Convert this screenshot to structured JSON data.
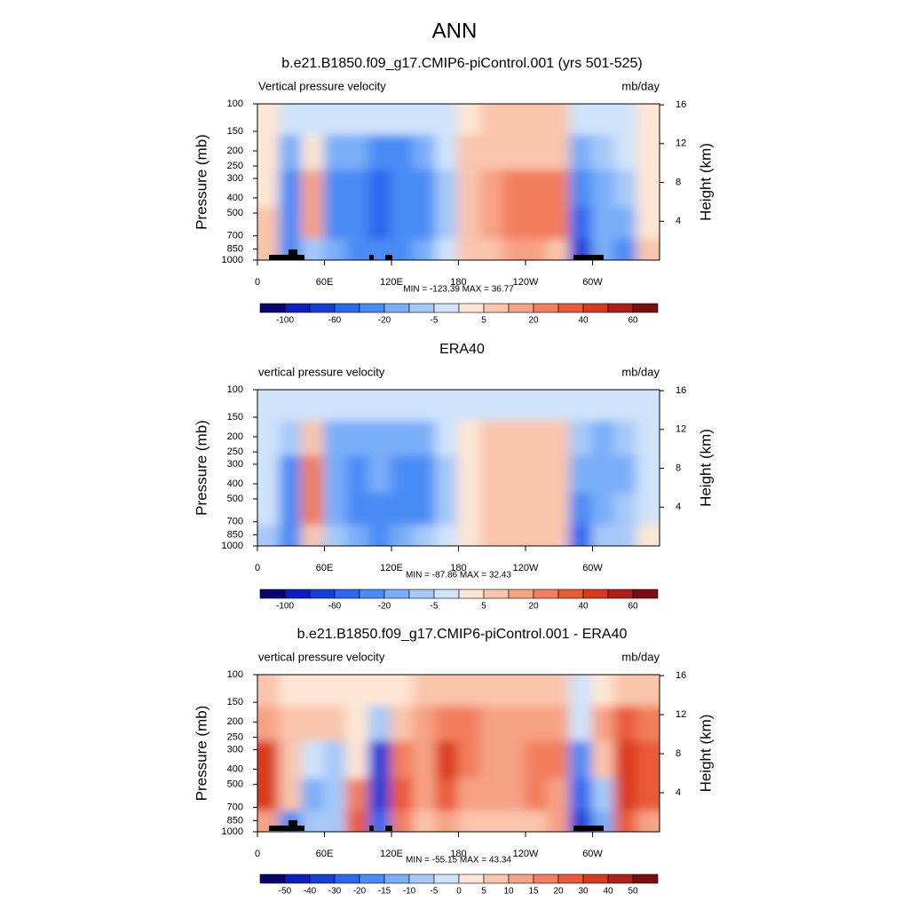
{
  "title": "ANN",
  "chart_data": [
    {
      "type": "contour",
      "title": "b.e21.B1850.f09_g17.CMIP6-piControl.001 (yrs 501-525)",
      "left_label": "Vertical pressure velocity",
      "right_label": "mb/day",
      "ylabel": "Pressure (mb)",
      "y2label": "Height (km)",
      "stats": "MIN = -123.39  MAX =  36.77",
      "xlim": [
        0,
        360
      ],
      "xticks": [
        0,
        {
          "value": 60,
          "label": "60E"
        },
        {
          "value": 120,
          "label": "120E"
        },
        180,
        {
          "value": 240,
          "label": "120W"
        },
        {
          "value": 300,
          "label": "60W"
        }
      ],
      "ylim": [
        1000,
        100
      ],
      "ylog": true,
      "yticks": [
        100,
        150,
        200,
        250,
        300,
        400,
        500,
        700,
        850,
        1000
      ],
      "y2lim": [
        0,
        16.1
      ],
      "y2ticks": [
        4,
        8,
        12,
        16
      ],
      "field": {
        "x": [
          10,
          30,
          50,
          70,
          90,
          110,
          130,
          150,
          170,
          190,
          210,
          230,
          250,
          270,
          290,
          310,
          330,
          350
        ],
        "p": [
          125,
          200,
          350,
          600,
          900
        ],
        "z": [
          [
            3,
            -3,
            -3,
            -5,
            -5,
            -5,
            -5,
            -5,
            -3,
            3,
            5,
            5,
            5,
            5,
            -3,
            -3,
            -3,
            3
          ],
          [
            3,
            -15,
            3,
            -15,
            -20,
            -25,
            -25,
            -15,
            -5,
            5,
            10,
            10,
            10,
            10,
            -20,
            -10,
            -5,
            3
          ],
          [
            3,
            -30,
            15,
            -25,
            -40,
            -60,
            -40,
            -25,
            -10,
            5,
            15,
            20,
            25,
            20,
            -40,
            -15,
            -10,
            3
          ],
          [
            5,
            -30,
            15,
            -25,
            -40,
            -50,
            -40,
            -25,
            -10,
            5,
            15,
            20,
            25,
            20,
            -50,
            -20,
            -15,
            3
          ],
          [
            5,
            -40,
            -10,
            -15,
            -30,
            -40,
            -30,
            -15,
            -5,
            5,
            10,
            15,
            15,
            10,
            -80,
            -20,
            -30,
            10
          ]
        ]
      },
      "colorbar": {
        "levels": [
          -100,
          -60,
          -20,
          -5,
          5,
          20,
          40,
          60
        ],
        "colors": [
          "#06066e",
          "#0a1fbd",
          "#1540d8",
          "#2c68ef",
          "#4a8bf5",
          "#79aef8",
          "#a6c9f8",
          "#cfe3fa",
          "#fde6d4",
          "#f9c5ac",
          "#f6a285",
          "#f27e5d",
          "#ea5a37",
          "#d93a1e",
          "#b0201b",
          "#7a0d0d"
        ]
      }
    },
    {
      "type": "contour",
      "title": "ERA40",
      "left_label": "vertical pressure velocity",
      "right_label": "mb/day",
      "ylabel": "Pressure (mb)",
      "y2label": "Height (km)",
      "stats": "MIN = -87.86  MAX =  32.43",
      "xlim": [
        0,
        360
      ],
      "xticks": [
        0,
        {
          "value": 60,
          "label": "60E"
        },
        {
          "value": 120,
          "label": "120E"
        },
        180,
        {
          "value": 240,
          "label": "120W"
        },
        {
          "value": 300,
          "label": "60W"
        }
      ],
      "ylim": [
        1000,
        100
      ],
      "ylog": true,
      "yticks": [
        100,
        150,
        200,
        250,
        300,
        400,
        500,
        700,
        850,
        1000
      ],
      "y2lim": [
        0,
        16.1
      ],
      "y2ticks": [
        4,
        8,
        12,
        16
      ],
      "field": {
        "x": [
          10,
          30,
          50,
          70,
          90,
          110,
          130,
          150,
          170,
          190,
          210,
          230,
          250,
          270,
          290,
          310,
          330,
          350
        ],
        "p": [
          125,
          200,
          350,
          600,
          900
        ],
        "z": [
          [
            -3,
            -3,
            -5,
            -5,
            -5,
            -5,
            -5,
            -5,
            -3,
            -3,
            -3,
            -3,
            -3,
            -3,
            -3,
            -3,
            -3,
            -3
          ],
          [
            -5,
            -10,
            5,
            -15,
            -20,
            -15,
            -20,
            -15,
            -5,
            3,
            5,
            5,
            5,
            5,
            -10,
            -15,
            -10,
            -5
          ],
          [
            -5,
            -30,
            20,
            -20,
            -30,
            -20,
            -30,
            -25,
            -10,
            3,
            10,
            10,
            10,
            5,
            -20,
            -20,
            -15,
            -5
          ],
          [
            -5,
            -30,
            20,
            -20,
            -30,
            -25,
            -30,
            -25,
            -10,
            3,
            10,
            10,
            10,
            5,
            -30,
            -15,
            -10,
            -5
          ],
          [
            -10,
            -30,
            5,
            -10,
            -20,
            -25,
            -20,
            -10,
            -5,
            3,
            5,
            5,
            5,
            5,
            -50,
            -10,
            -10,
            3
          ]
        ]
      },
      "colorbar": {
        "levels": [
          -100,
          -60,
          -20,
          -5,
          5,
          20,
          40,
          60
        ],
        "colors": [
          "#06066e",
          "#0a1fbd",
          "#1540d8",
          "#2c68ef",
          "#4a8bf5",
          "#79aef8",
          "#a6c9f8",
          "#cfe3fa",
          "#fde6d4",
          "#f9c5ac",
          "#f6a285",
          "#f27e5d",
          "#ea5a37",
          "#d93a1e",
          "#b0201b",
          "#7a0d0d"
        ]
      }
    },
    {
      "type": "contour",
      "title": "b.e21.B1850.f09_g17.CMIP6-piControl.001 - ERA40",
      "left_label": "vertical pressure velocity",
      "right_label": "mb/day",
      "ylabel": "Pressure (mb)",
      "y2label": "Height (km)",
      "stats": "MIN = -55.15  MAX =  43.34",
      "xlim": [
        0,
        360
      ],
      "xticks": [
        0,
        {
          "value": 60,
          "label": "60E"
        },
        {
          "value": 120,
          "label": "120E"
        },
        180,
        {
          "value": 240,
          "label": "120W"
        },
        {
          "value": 300,
          "label": "60W"
        }
      ],
      "ylim": [
        1000,
        100
      ],
      "ylog": true,
      "yticks": [
        100,
        150,
        200,
        250,
        300,
        400,
        500,
        700,
        850,
        1000
      ],
      "y2lim": [
        0,
        16.1
      ],
      "y2ticks": [
        4,
        8,
        12,
        16
      ],
      "field": {
        "x": [
          10,
          30,
          50,
          70,
          90,
          110,
          130,
          150,
          170,
          190,
          210,
          230,
          250,
          270,
          290,
          310,
          330,
          350
        ],
        "p": [
          125,
          200,
          350,
          600,
          900
        ],
        "z": [
          [
            5,
            3,
            3,
            3,
            3,
            3,
            3,
            5,
            5,
            5,
            5,
            5,
            5,
            5,
            -3,
            3,
            5,
            5
          ],
          [
            10,
            5,
            5,
            5,
            0,
            -10,
            5,
            10,
            15,
            15,
            10,
            10,
            10,
            10,
            -5,
            10,
            20,
            15
          ],
          [
            30,
            5,
            -5,
            -10,
            0,
            -40,
            15,
            10,
            30,
            15,
            10,
            10,
            15,
            15,
            -20,
            5,
            30,
            20
          ],
          [
            30,
            5,
            -15,
            -10,
            15,
            -40,
            20,
            10,
            25,
            10,
            10,
            10,
            15,
            10,
            -30,
            -10,
            30,
            20
          ],
          [
            10,
            -20,
            -10,
            -10,
            20,
            -30,
            15,
            5,
            10,
            5,
            5,
            5,
            5,
            10,
            -40,
            -15,
            20,
            10
          ]
        ]
      },
      "colorbar": {
        "levels": [
          -50,
          -40,
          -30,
          -20,
          -15,
          -10,
          -5,
          0,
          5,
          10,
          15,
          20,
          30,
          40,
          50
        ],
        "colors": [
          "#06066e",
          "#0a1fbd",
          "#1540d8",
          "#2c68ef",
          "#4a8bf5",
          "#79aef8",
          "#a6c9f8",
          "#cfe3fa",
          "#fde6d4",
          "#f9c5ac",
          "#f6a285",
          "#f27e5d",
          "#ea5a37",
          "#d93a1e",
          "#b0201b",
          "#7a0d0d"
        ]
      }
    }
  ]
}
